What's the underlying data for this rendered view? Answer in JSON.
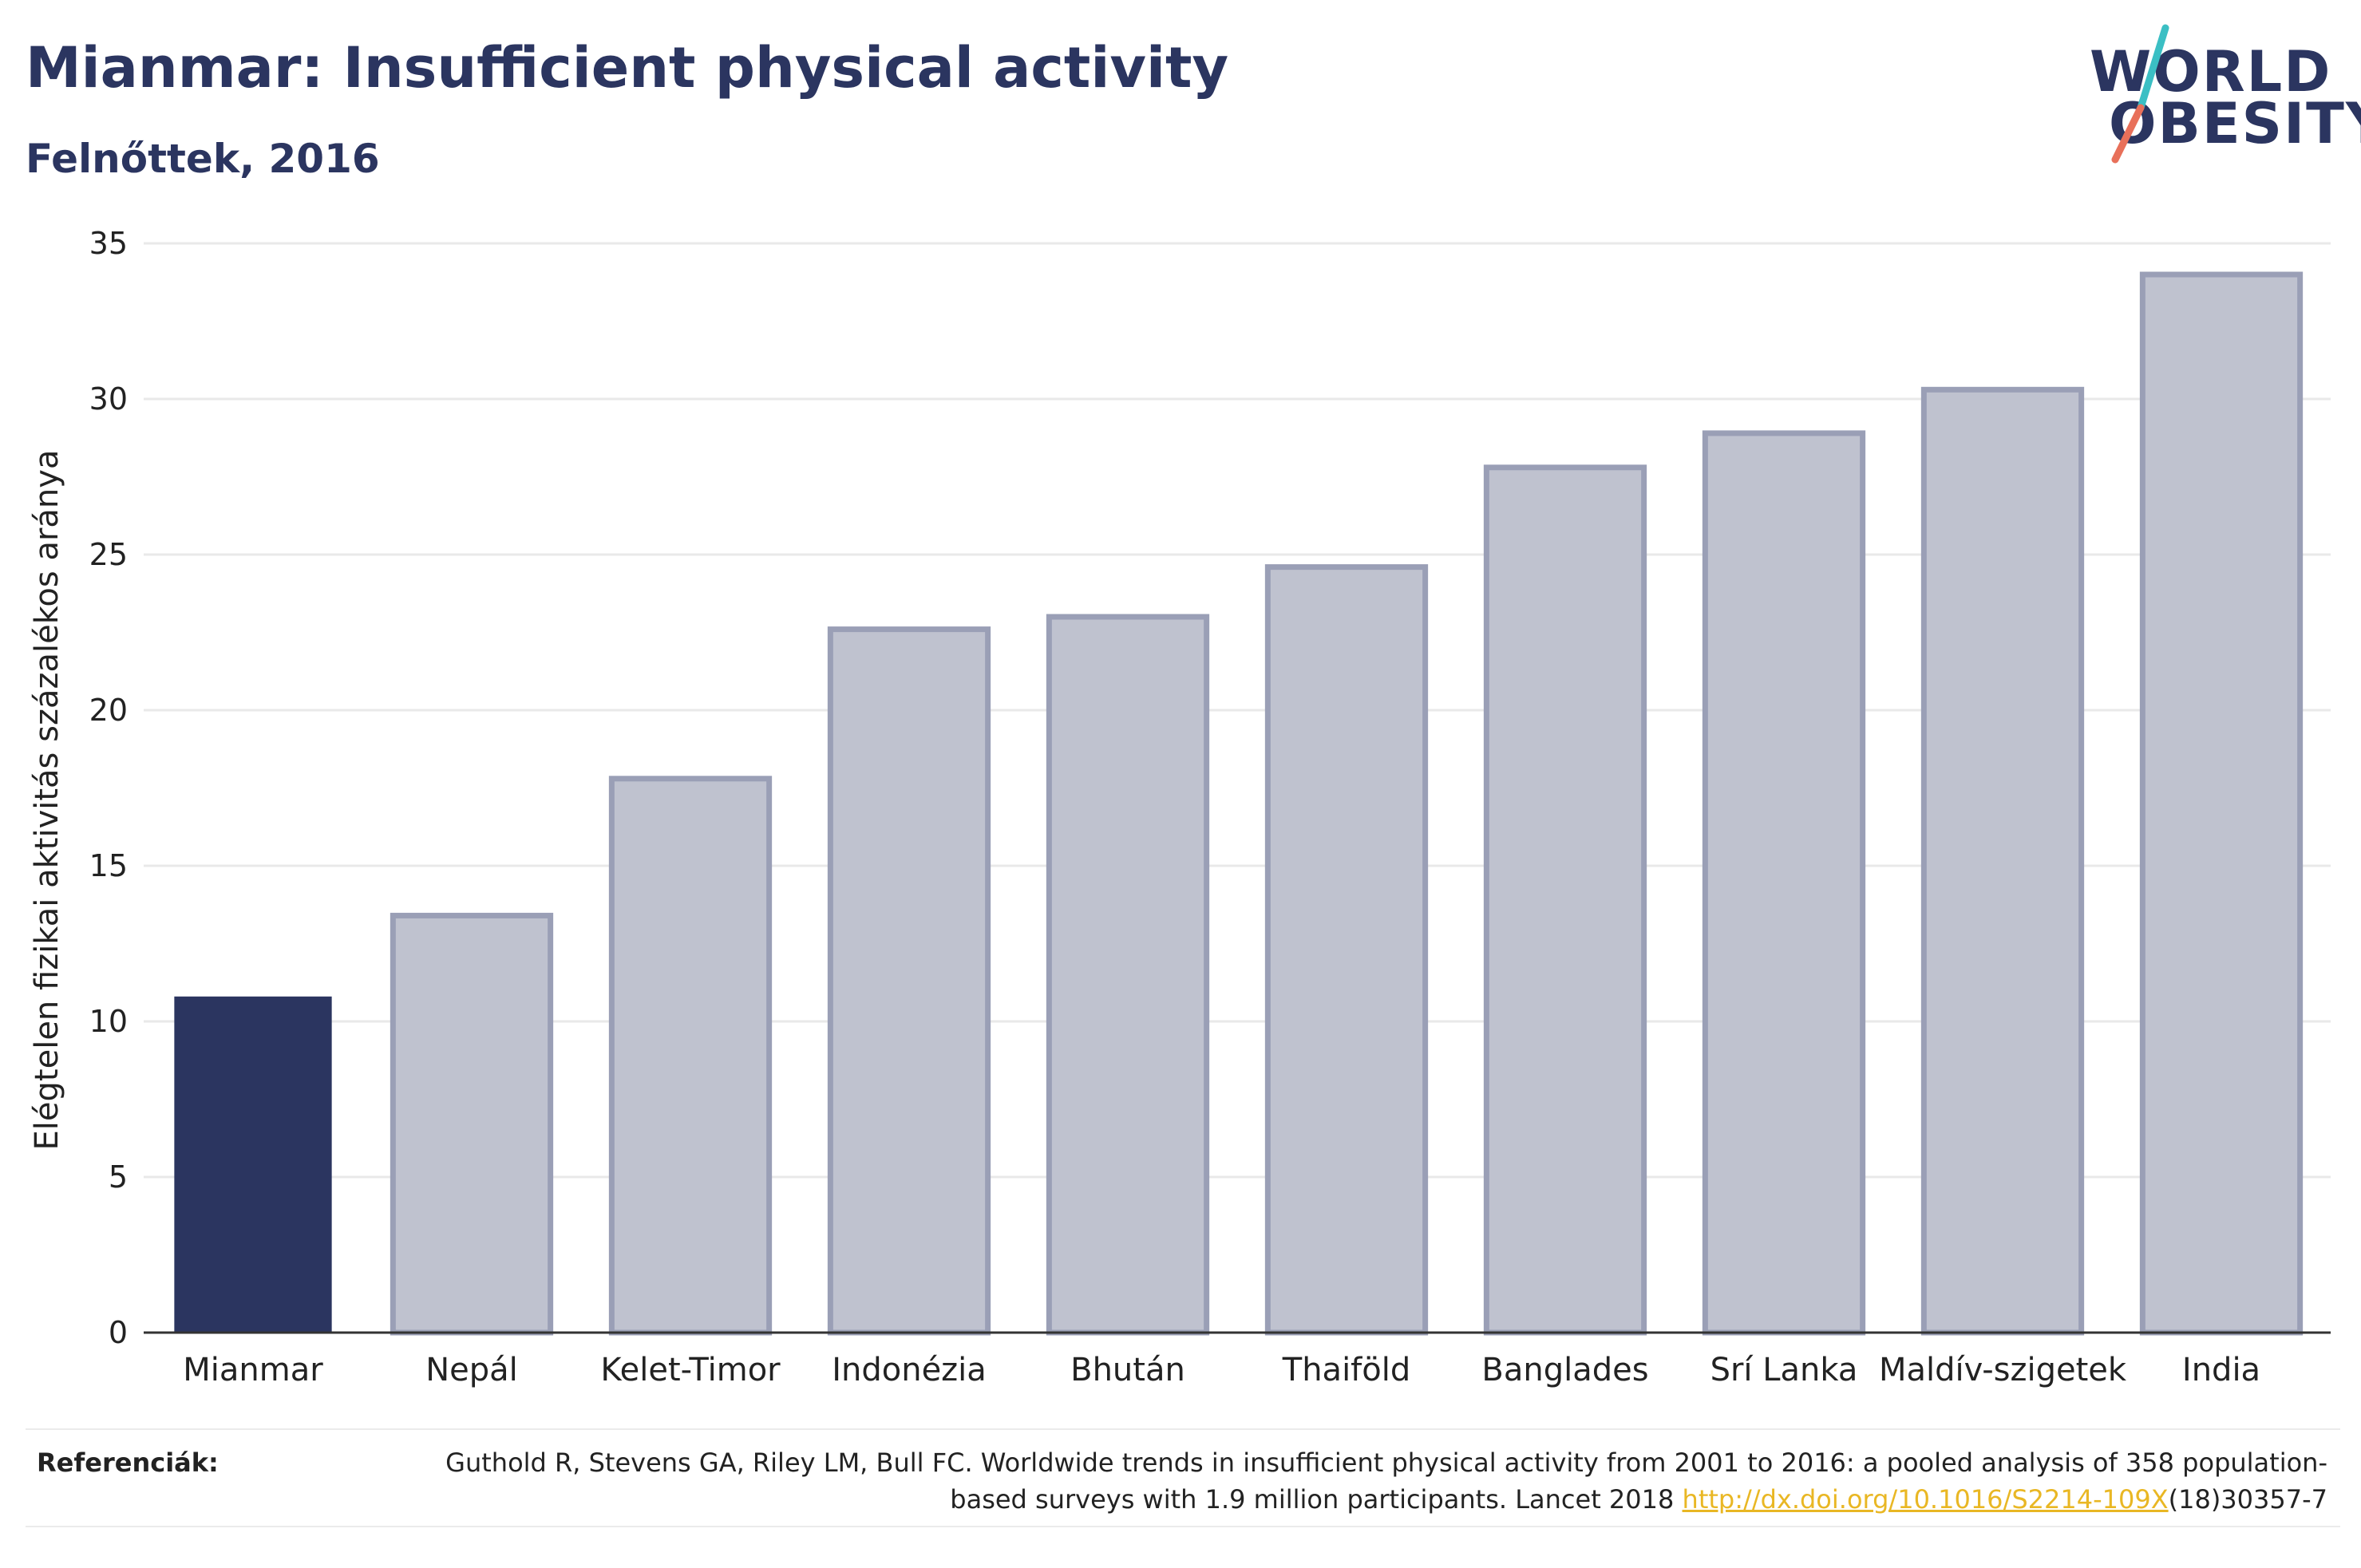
{
  "header": {
    "title": "Mianmar: Insufficient physical activity",
    "subtitle": "Felnőttek, 2016"
  },
  "logo": {
    "line1": "WORLD",
    "line2": "OBESITY",
    "colors": {
      "text": "#2b3560",
      "slash_teal": "#3bbfc4",
      "slash_coral": "#e8705a"
    }
  },
  "colors": {
    "highlight_bar": "#2b3560",
    "other_bar_fill": "#bfc2cf",
    "other_bar_stroke": "#9a9fb6",
    "grid": "#e9e9e9",
    "axis": "#333333"
  },
  "chart_data": {
    "type": "bar",
    "title": "",
    "ylabel": "Elégtelen fizikai aktivitás százalékos aránya",
    "xlabel": "",
    "ylim": [
      0,
      35
    ],
    "yticks": [
      0,
      5,
      10,
      15,
      20,
      25,
      30,
      35
    ],
    "grid": true,
    "categories": [
      "Mianmar",
      "Nepál",
      "Kelet-Timor",
      "Indonézia",
      "Bhután",
      "Thaiföld",
      "Banglades",
      "Srí Lanka",
      "Maldív-szigetek",
      "India"
    ],
    "values": [
      10.8,
      13.4,
      17.8,
      22.6,
      23.0,
      24.6,
      27.8,
      28.9,
      30.3,
      34.0
    ],
    "highlighted": "Mianmar"
  },
  "references": {
    "label": "Referenciák:",
    "text_before": "Guthold R, Stevens GA, Riley LM, Bull FC. Worldwide trends in insufficient physical activity from 2001 to 2016: a pooled analysis of 358 population-based surveys with 1.9 million participants. Lancet 2018 ",
    "link": "http://dx.doi.org/10.1016/S2214-109X",
    "text_after": "(18)30357-7"
  }
}
